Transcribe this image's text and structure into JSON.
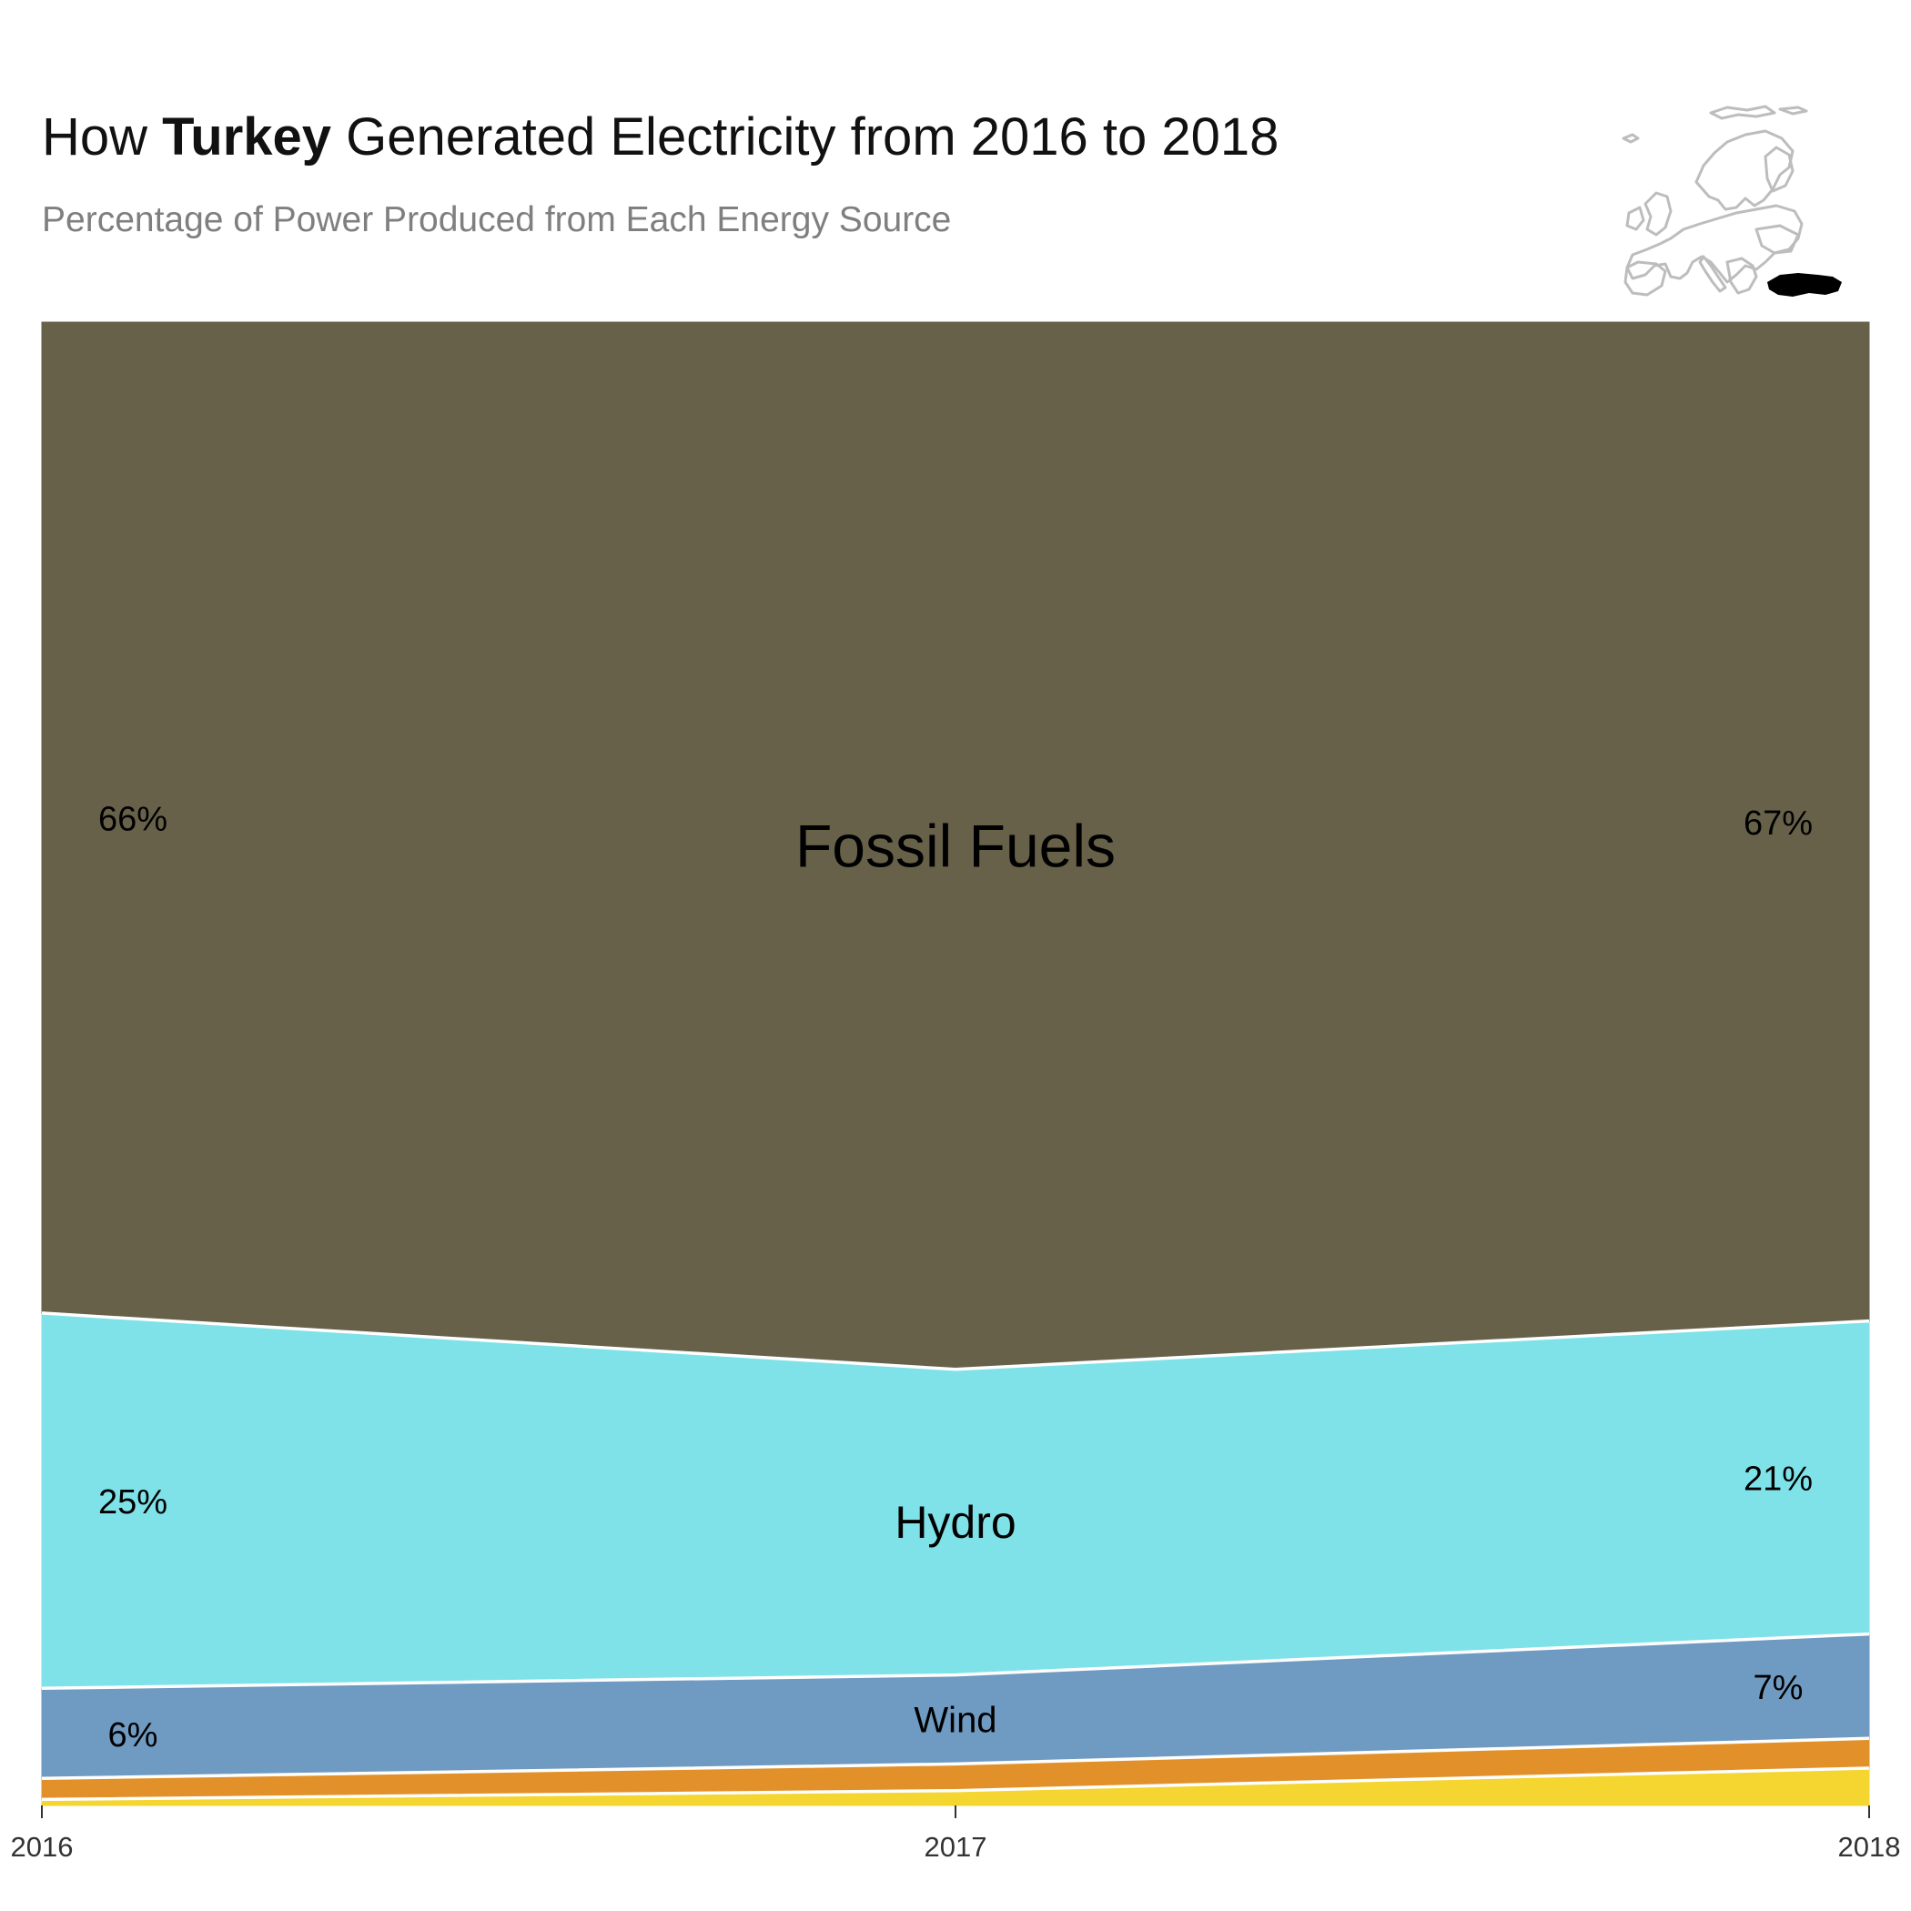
{
  "header": {
    "title_prefix": "How ",
    "title_country": "Turkey",
    "title_suffix": " Generated Electricity from 2016 to 2018",
    "subtitle": "Percentage of Power Produced from Each Energy Source"
  },
  "minimap": {
    "description_icon": "europe-map-icon",
    "highlight_region": "Turkey",
    "outline_color": "#bdbdbd",
    "highlight_color": "#000000"
  },
  "chart_data": {
    "type": "area",
    "stacked": true,
    "normalized_percent": true,
    "title": "How Turkey Generated Electricity from 2016 to 2018",
    "subtitle": "Percentage of Power Produced from Each Energy Source",
    "x": [
      2016,
      2017,
      2018
    ],
    "x_tick_labels": [
      "2016",
      "2017",
      "2018"
    ],
    "ylim": [
      0,
      100
    ],
    "grid": false,
    "legend": "none (inline labels)",
    "series": [
      {
        "name": "",
        "color": "#f5d52f",
        "values": [
          0.4,
          1.0,
          2.5
        ],
        "label": ""
      },
      {
        "name": "",
        "color": "#e2912a",
        "values": [
          1.4,
          1.8,
          2.0
        ],
        "label": ""
      },
      {
        "name": "Wind",
        "color": "#6f9ac1",
        "values": [
          6,
          6,
          7
        ],
        "label": "Wind"
      },
      {
        "name": "Hydro",
        "color": "#7fe2e8",
        "values": [
          25,
          20.6,
          21
        ],
        "label": "Hydro"
      },
      {
        "name": "Fossil Fuels",
        "color": "#67614a",
        "values": [
          66,
          70.6,
          67
        ],
        "label": "Fossil Fuels"
      }
    ],
    "edge_labels": {
      "Fossil Fuels": {
        "start": "66%",
        "end": "67%"
      },
      "Hydro": {
        "start": "25%",
        "end": "21%"
      },
      "Wind": {
        "start": "6%",
        "end": "7%"
      }
    }
  }
}
